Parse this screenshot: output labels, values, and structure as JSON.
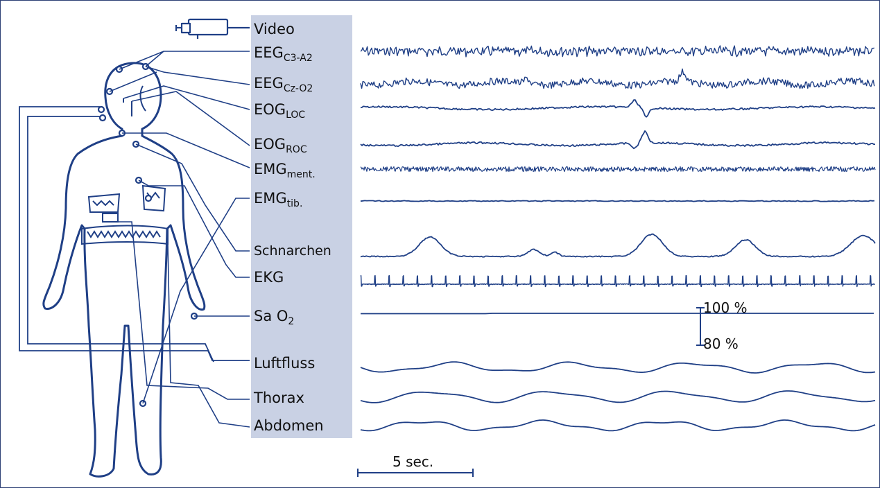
{
  "colors": {
    "ink": "#1f3f86",
    "panel": "#c9d1e4",
    "frame": "#2c3f74"
  },
  "channels": [
    {
      "key": "video",
      "label": "Video",
      "sub": ""
    },
    {
      "key": "eeg1",
      "label": "EEG",
      "sub": "C3-A2"
    },
    {
      "key": "eeg2",
      "label": "EEG",
      "sub": "Cz-O2"
    },
    {
      "key": "eogl",
      "label": "EOG",
      "sub": "LOC"
    },
    {
      "key": "eogr",
      "label": "EOG",
      "sub": "ROC"
    },
    {
      "key": "emgm",
      "label": "EMG",
      "sub": "ment."
    },
    {
      "key": "emgt",
      "label": "EMG",
      "sub": "tib."
    },
    {
      "key": "schnarchen",
      "label": "Schnarchen",
      "sub": ""
    },
    {
      "key": "ekg",
      "label": "EKG",
      "sub": ""
    },
    {
      "key": "sao2",
      "label": "Sa O",
      "sub": "2"
    },
    {
      "key": "luftfluss",
      "label": "Luftfluss",
      "sub": ""
    },
    {
      "key": "thorax",
      "label": "Thorax",
      "sub": ""
    },
    {
      "key": "abdomen",
      "label": "Abdomen",
      "sub": ""
    }
  ],
  "sao2_scale": {
    "top_label": "100 %",
    "bottom_label": "80 %"
  },
  "timescale": {
    "label": "5 sec."
  }
}
